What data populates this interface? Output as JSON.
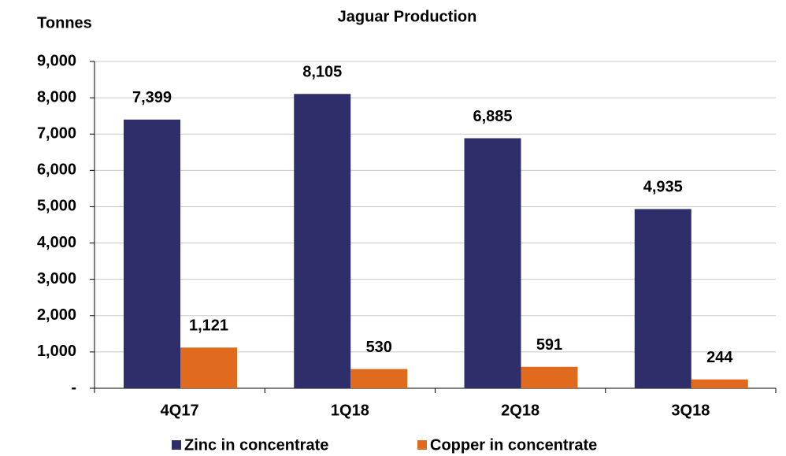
{
  "chart_data": {
    "type": "bar",
    "title": "Jaguar Production",
    "y_axis_label": "Tonnes",
    "categories": [
      "4Q17",
      "1Q18",
      "2Q18",
      "3Q18"
    ],
    "series": [
      {
        "name": "Zinc in concentrate",
        "color": "#2e2e6a",
        "values": [
          7399,
          8105,
          6885,
          4935
        ],
        "value_labels": [
          "7,399",
          "8,105",
          "6,885",
          "4,935"
        ]
      },
      {
        "name": "Copper in concentrate",
        "color": "#e06a1e",
        "values": [
          1121,
          530,
          591,
          244
        ],
        "value_labels": [
          "1,121",
          "530",
          "591",
          "244"
        ]
      }
    ],
    "ylim": [
      0,
      9000
    ],
    "yticks": [
      {
        "value": 0,
        "label": "-"
      },
      {
        "value": 1000,
        "label": "1,000"
      },
      {
        "value": 2000,
        "label": "2,000"
      },
      {
        "value": 3000,
        "label": "3,000"
      },
      {
        "value": 4000,
        "label": "4,000"
      },
      {
        "value": 5000,
        "label": "5,000"
      },
      {
        "value": 6000,
        "label": "6,000"
      },
      {
        "value": 7000,
        "label": "7,000"
      },
      {
        "value": 8000,
        "label": "8,000"
      },
      {
        "value": 9000,
        "label": "9,000"
      }
    ],
    "grid": true
  }
}
